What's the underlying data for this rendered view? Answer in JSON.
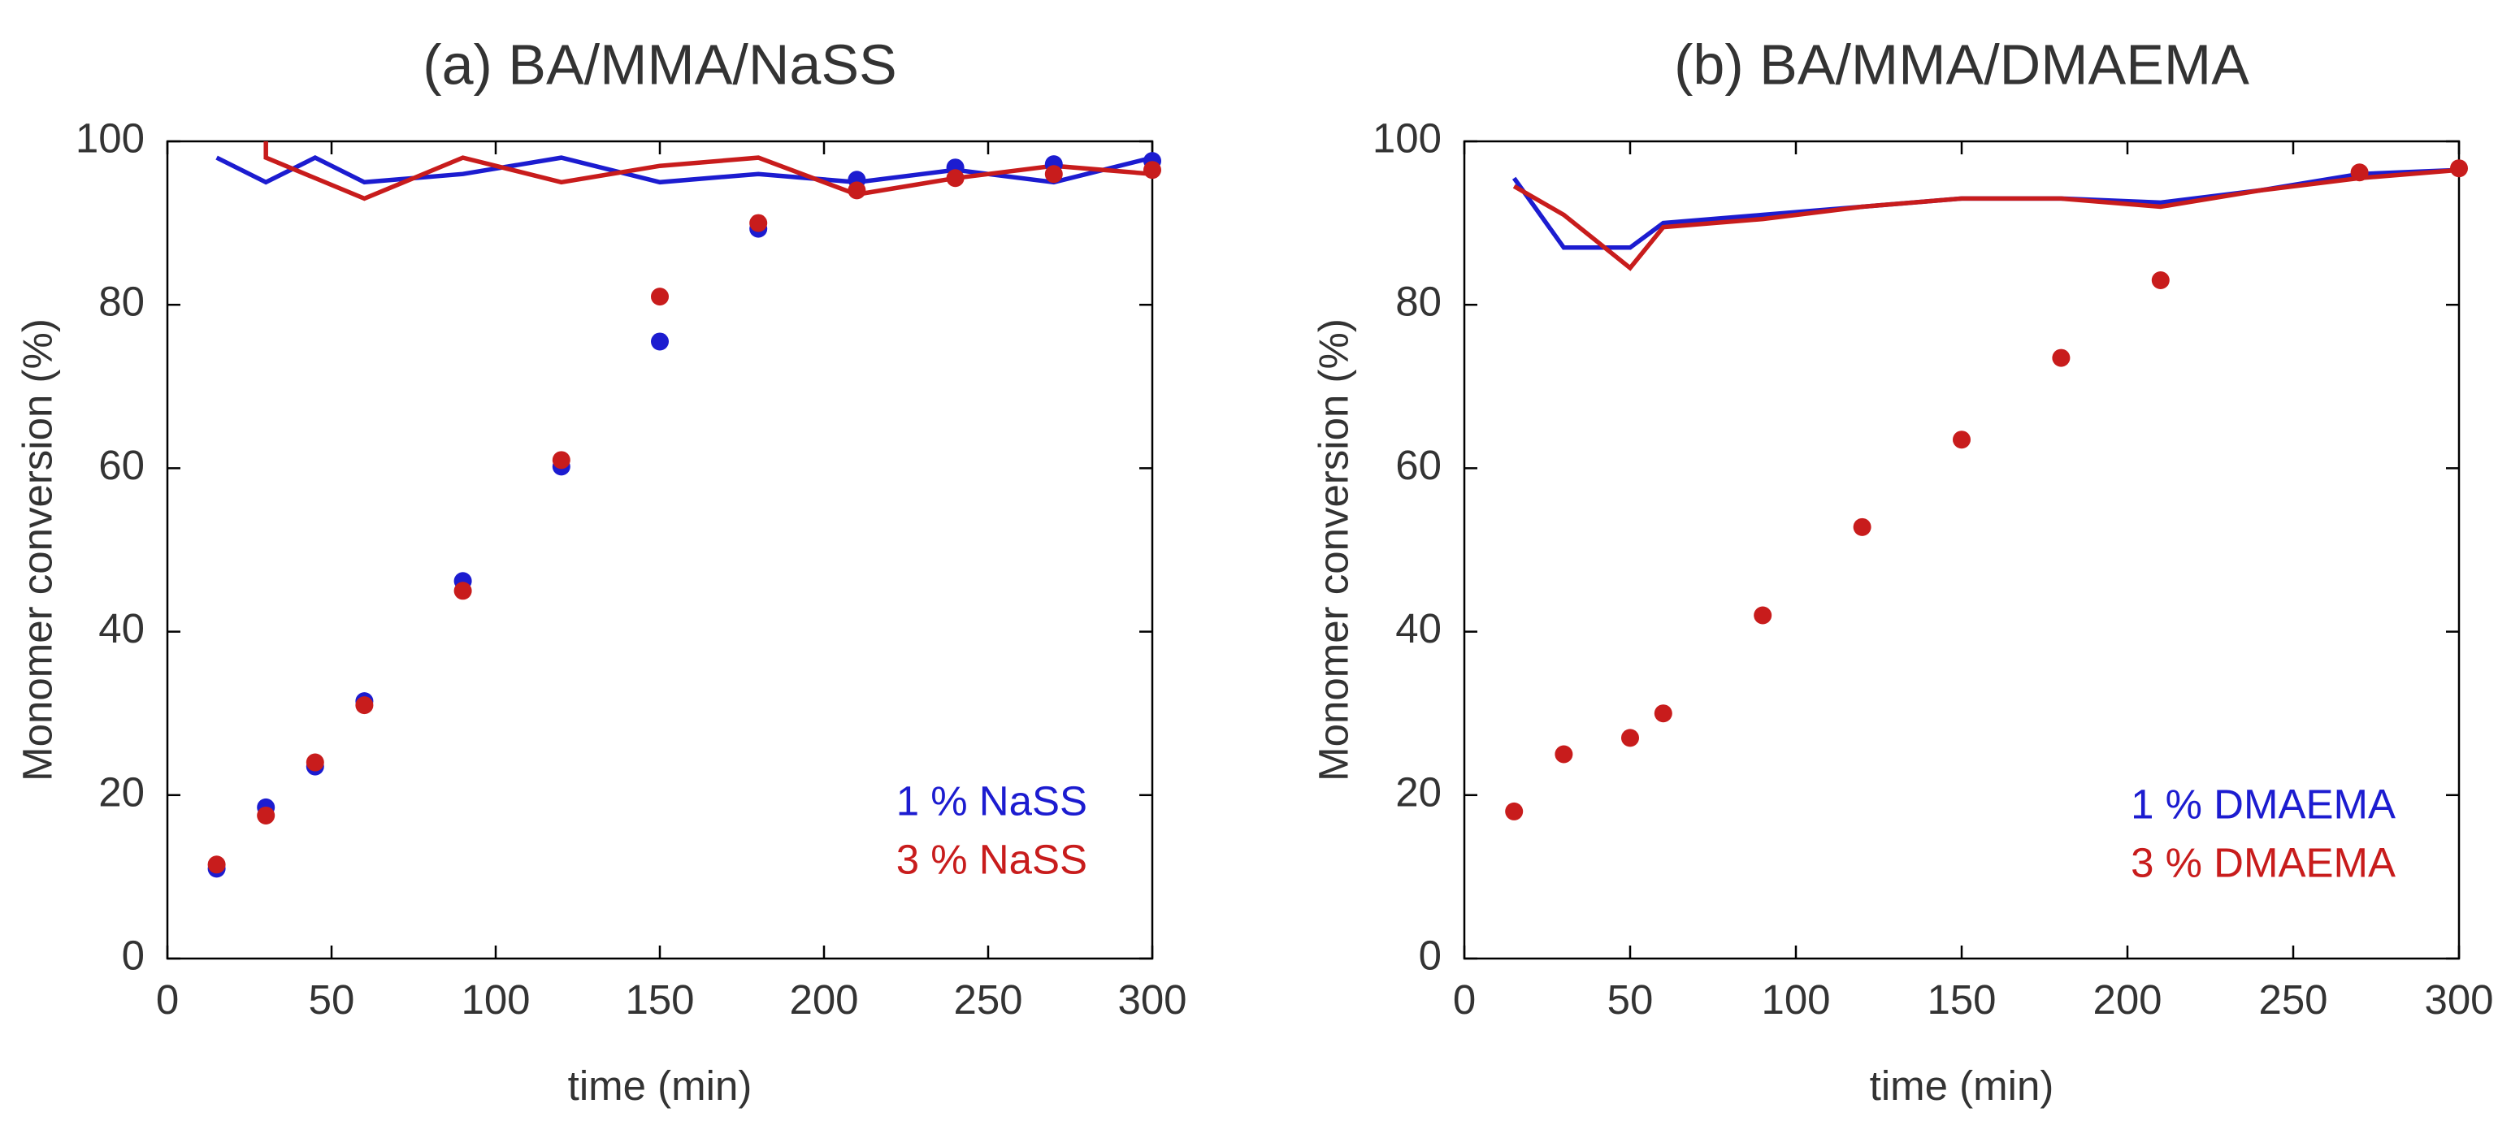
{
  "chart_data": [
    {
      "type": "scatter",
      "title": "(a) BA/MMA/NaSS",
      "xlabel": "time (min)",
      "ylabel": "Monomer conversion (%)",
      "xlim": [
        0,
        300
      ],
      "ylim": [
        0,
        100
      ],
      "xticks": [
        "0",
        "50",
        "100",
        "150",
        "200",
        "250",
        "300"
      ],
      "yticks": [
        "0",
        "20",
        "40",
        "60",
        "80",
        "100"
      ],
      "grid": false,
      "legend_position": "bottom-right",
      "series": [
        {
          "name": "1 % NaSS",
          "color": "#1c1cd0",
          "points": [
            [
              15,
              11
            ],
            [
              30,
              18.5
            ],
            [
              45,
              23.5
            ],
            [
              60,
              31.5
            ],
            [
              90,
              46.2
            ],
            [
              120,
              60.2
            ],
            [
              150,
              75.5
            ],
            [
              180,
              89.3
            ],
            [
              210,
              95.3
            ],
            [
              240,
              96.8
            ],
            [
              270,
              97.2
            ],
            [
              300,
              97.6
            ]
          ],
          "line": [
            [
              15,
              98
            ],
            [
              30,
              95
            ],
            [
              45,
              98
            ],
            [
              60,
              95
            ],
            [
              90,
              96
            ],
            [
              120,
              98
            ],
            [
              150,
              95
            ],
            [
              180,
              96
            ],
            [
              210,
              95
            ],
            [
              240,
              96.5
            ],
            [
              270,
              95
            ],
            [
              300,
              98
            ]
          ]
        },
        {
          "name": "3 % NaSS",
          "color": "#c81c1c",
          "points": [
            [
              15,
              11.5
            ],
            [
              30,
              17.5
            ],
            [
              45,
              24
            ],
            [
              60,
              31
            ],
            [
              90,
              45
            ],
            [
              120,
              61
            ],
            [
              150,
              81
            ],
            [
              180,
              90
            ],
            [
              210,
              94
            ],
            [
              240,
              95.5
            ],
            [
              270,
              96
            ],
            [
              300,
              96.5
            ]
          ],
          "line": [
            [
              30,
              100
            ],
            [
              30,
              98
            ],
            [
              60,
              93
            ],
            [
              90,
              98
            ],
            [
              120,
              95
            ],
            [
              150,
              97
            ],
            [
              180,
              98
            ],
            [
              210,
              93.5
            ],
            [
              240,
              95.5
            ],
            [
              270,
              97
            ],
            [
              300,
              96
            ]
          ]
        }
      ]
    },
    {
      "type": "scatter",
      "title": "(b) BA/MMA/DMAEMA",
      "xlabel": "time (min)",
      "ylabel": "Monomer conversion (%)",
      "xlim": [
        0,
        300
      ],
      "ylim": [
        0,
        100
      ],
      "xticks": [
        "0",
        "50",
        "100",
        "150",
        "200",
        "250",
        "300"
      ],
      "yticks": [
        "0",
        "20",
        "40",
        "60",
        "80",
        "100"
      ],
      "grid": false,
      "legend_position": "bottom-right",
      "series": [
        {
          "name": "1 % DMAEMA",
          "color": "#1c1cd0",
          "points": [],
          "line": [
            [
              15,
              95.5
            ],
            [
              30,
              87
            ],
            [
              50,
              87
            ],
            [
              60,
              90
            ],
            [
              90,
              91
            ],
            [
              120,
              92
            ],
            [
              150,
              93
            ],
            [
              180,
              93
            ],
            [
              210,
              92.5
            ],
            [
              240,
              94
            ],
            [
              270,
              96
            ],
            [
              300,
              96.5
            ]
          ]
        },
        {
          "name": "3 % DMAEMA",
          "color": "#c81c1c",
          "points": [
            [
              15,
              18
            ],
            [
              30,
              25
            ],
            [
              50,
              27
            ],
            [
              60,
              30
            ],
            [
              90,
              42
            ],
            [
              120,
              52.8
            ],
            [
              150,
              63.5
            ],
            [
              180,
              73.5
            ],
            [
              210,
              83
            ],
            [
              270,
              96.2
            ],
            [
              300,
              96.7
            ]
          ],
          "line": [
            [
              15,
              94.5
            ],
            [
              30,
              91
            ],
            [
              50,
              84.5
            ],
            [
              60,
              89.5
            ],
            [
              90,
              90.5
            ],
            [
              120,
              92
            ],
            [
              150,
              93
            ],
            [
              180,
              93
            ],
            [
              210,
              92
            ],
            [
              240,
              94
            ],
            [
              270,
              95.5
            ],
            [
              300,
              96.5
            ]
          ]
        }
      ]
    }
  ]
}
